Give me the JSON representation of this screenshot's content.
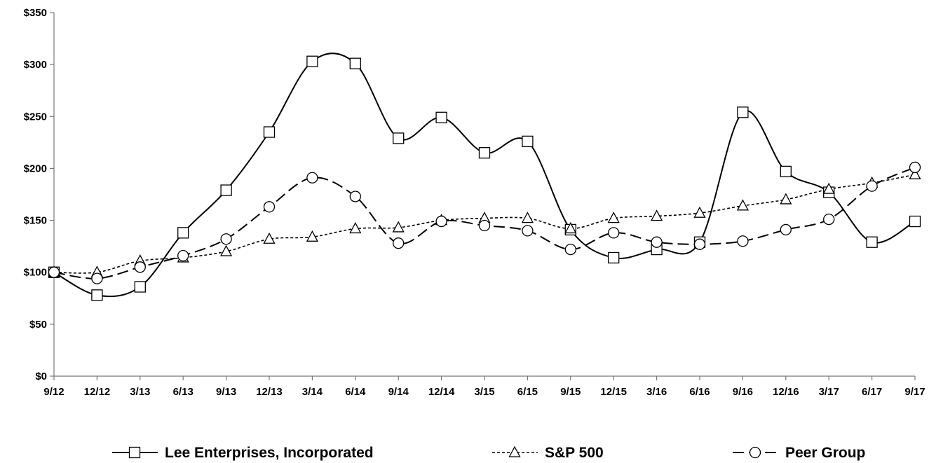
{
  "chart_data": {
    "type": "line",
    "title": "",
    "xlabel": "",
    "ylabel": "",
    "categories": [
      "9/12",
      "12/12",
      "3/13",
      "6/13",
      "9/13",
      "12/13",
      "3/14",
      "6/14",
      "9/14",
      "12/14",
      "3/15",
      "6/15",
      "9/15",
      "12/15",
      "3/16",
      "6/16",
      "9/16",
      "12/16",
      "3/17",
      "6/17",
      "9/17"
    ],
    "ylim": [
      0,
      350
    ],
    "yticks": [
      0,
      50,
      100,
      150,
      200,
      250,
      300,
      350
    ],
    "ytick_labels": [
      "$0",
      "$50",
      "$100",
      "$150",
      "$200",
      "$250",
      "$300",
      "$350"
    ],
    "grid": false,
    "legend_position": "bottom",
    "series": [
      {
        "name": "Lee Enterprises, Incorporated",
        "marker": "square",
        "line_style": "solid",
        "values": [
          100,
          78,
          86,
          138,
          179,
          235,
          303,
          301,
          229,
          249,
          215,
          226,
          141,
          114,
          122,
          129,
          254,
          197,
          177,
          129,
          149
        ]
      },
      {
        "name": "S&P 500",
        "marker": "triangle",
        "line_style": "dotted",
        "values": [
          100,
          100,
          111,
          114,
          120,
          132,
          134,
          142,
          143,
          150,
          152,
          152,
          142,
          152,
          154,
          157,
          164,
          170,
          180,
          186,
          194
        ]
      },
      {
        "name": "Peer Group",
        "marker": "circle",
        "line_style": "dashed",
        "values": [
          100,
          94,
          105,
          116,
          132,
          163,
          191,
          173,
          128,
          149,
          145,
          140,
          122,
          138,
          129,
          127,
          130,
          141,
          151,
          183,
          201
        ]
      }
    ]
  }
}
